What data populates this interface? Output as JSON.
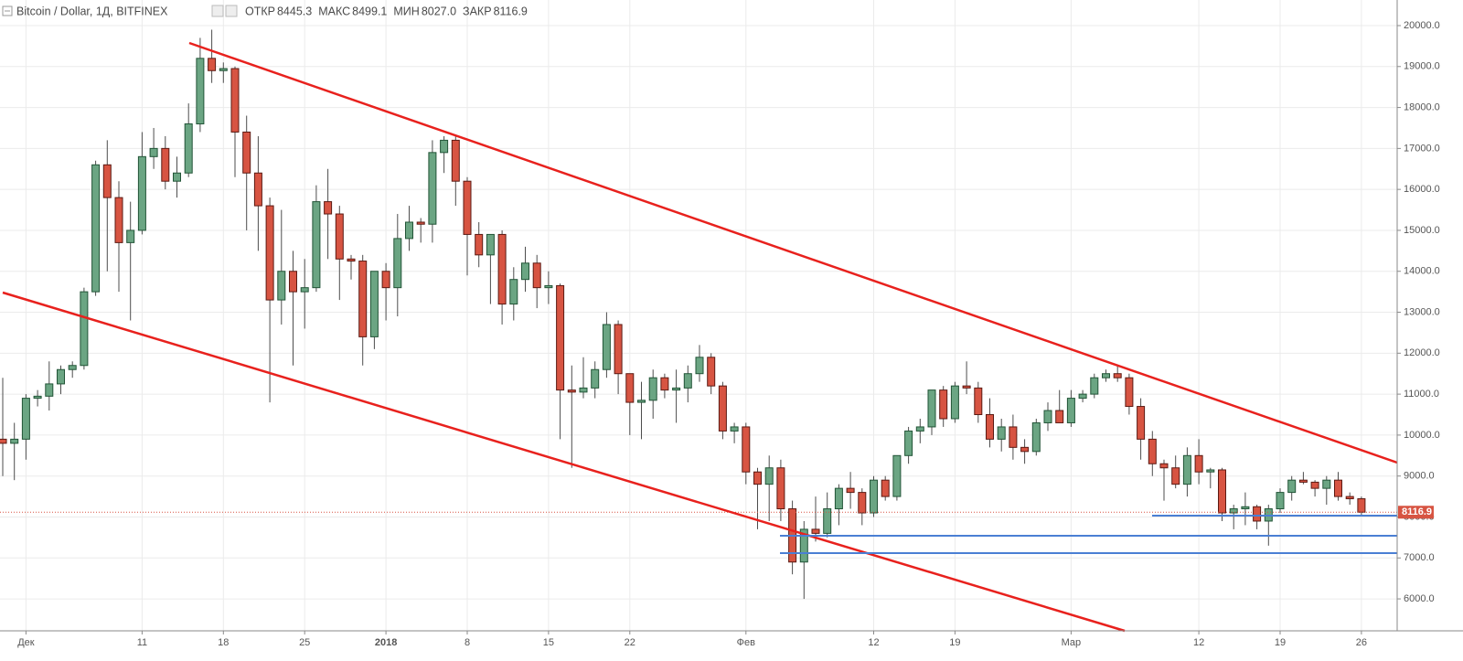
{
  "chart_data": {
    "type": "candlestick",
    "title": "Bitcoin / Dollar, 1Д, BITFINEX",
    "header": [
      {
        "name": "ОТКР",
        "value": 8445.3,
        "label": "8445.3"
      },
      {
        "name": "МАКС",
        "value": 8499.1,
        "label": "8499.1"
      },
      {
        "name": "МИН",
        "value": 8027,
        "label": "8027.0"
      },
      {
        "name": "ЗАКР",
        "value": 8116.9,
        "label": "8116.9"
      }
    ],
    "categories": [
      null,
      null,
      "Дек",
      null,
      null,
      null,
      null,
      null,
      null,
      null,
      null,
      null,
      "11",
      null,
      null,
      null,
      null,
      null,
      null,
      "18",
      null,
      null,
      null,
      null,
      null,
      null,
      "25",
      null,
      null,
      null,
      null,
      null,
      null,
      "2018",
      null,
      null,
      null,
      null,
      null,
      null,
      "8",
      null,
      null,
      null,
      null,
      null,
      null,
      "15",
      null,
      null,
      null,
      null,
      null,
      null,
      "22",
      null,
      null,
      null,
      null,
      null,
      null,
      null,
      null,
      null,
      "Фев",
      null,
      null,
      null,
      null,
      null,
      null,
      null,
      null,
      null,
      null,
      "12",
      null,
      null,
      null,
      null,
      null,
      null,
      "19",
      null,
      null,
      null,
      null,
      null,
      null,
      null,
      null,
      null,
      "Мар",
      null,
      null,
      null,
      null,
      null,
      null,
      null,
      null,
      null,
      null,
      "12",
      null,
      null,
      null,
      null,
      null,
      null,
      "19",
      null,
      null,
      null,
      null,
      null,
      null,
      "26"
    ],
    "open": [
      9900,
      9800,
      9900,
      10900,
      10950,
      11250,
      11600,
      11700,
      13500,
      16600,
      15800,
      14700,
      15000,
      16800,
      17000,
      16200,
      16400,
      17600,
      19200,
      18900,
      18950,
      17400,
      16400,
      15600,
      13300,
      14000,
      13500,
      13600,
      15700,
      15400,
      14300,
      14250,
      12400,
      14000,
      13600,
      14800,
      15200,
      15150,
      16900,
      17200,
      16200,
      14900,
      14400,
      14900,
      13200,
      13800,
      14200,
      13600,
      13650,
      11100,
      11050,
      11150,
      11600,
      12700,
      11500,
      10800,
      10850,
      11400,
      11100,
      11150,
      11500,
      11900,
      11200,
      10100,
      10200,
      9100,
      8800,
      9200,
      8200,
      6900,
      7700,
      7600,
      8200,
      8700,
      8600,
      8100,
      8900,
      8500,
      9500,
      10100,
      10200,
      11100,
      10400,
      11200,
      11150,
      10500,
      9900,
      10200,
      9700,
      9600,
      10300,
      10600,
      10300,
      10900,
      11000,
      11400,
      11500,
      11400,
      10700,
      9900,
      9300,
      9200,
      8800,
      9500,
      9100,
      9150,
      8100,
      8200,
      8250,
      7900,
      8200,
      8600,
      8900,
      8850,
      8700,
      8900,
      8500,
      8445.3
    ],
    "high": [
      11400,
      10300,
      11000,
      11100,
      11800,
      11700,
      11800,
      13600,
      16700,
      17200,
      16200,
      15700,
      17400,
      17500,
      17300,
      16800,
      18100,
      19700,
      19900,
      19100,
      19000,
      17800,
      17300,
      15800,
      15500,
      14500,
      14300,
      16100,
      16500,
      15600,
      14400,
      14400,
      14000,
      14200,
      15400,
      15600,
      15300,
      17200,
      17300,
      17300,
      16300,
      15200,
      14900,
      15000,
      14100,
      14600,
      14400,
      14000,
      13700,
      11700,
      11900,
      11800,
      13000,
      12800,
      11500,
      11300,
      11600,
      11500,
      11600,
      11700,
      12200,
      12000,
      11300,
      10300,
      10300,
      9200,
      9500,
      9400,
      8400,
      7900,
      8500,
      8600,
      8800,
      9100,
      8700,
      9000,
      9000,
      9500,
      10200,
      10400,
      11100,
      11200,
      11300,
      11800,
      11300,
      10900,
      10400,
      10500,
      9900,
      10400,
      10800,
      11100,
      11100,
      11100,
      11500,
      11600,
      11700,
      11500,
      10900,
      10100,
      9400,
      9500,
      9700,
      9900,
      9200,
      9200,
      8300,
      8600,
      8300,
      8300,
      8700,
      9000,
      9100,
      8900,
      9000,
      9100,
      8600,
      8499.1
    ],
    "low": [
      9000,
      8900,
      9400,
      10700,
      10600,
      11000,
      11400,
      11600,
      13400,
      14000,
      13500,
      12800,
      14900,
      16500,
      16000,
      15800,
      16300,
      17400,
      18600,
      18600,
      16300,
      15000,
      14500,
      10800,
      12700,
      11700,
      12600,
      13500,
      14300,
      13300,
      13800,
      11700,
      12100,
      12800,
      12900,
      14500,
      14700,
      14700,
      16400,
      15600,
      13900,
      14100,
      13200,
      12700,
      12800,
      13500,
      13100,
      13200,
      9900,
      9200,
      10900,
      10900,
      11400,
      11000,
      10000,
      9900,
      10400,
      10900,
      10300,
      10800,
      11300,
      11000,
      9900,
      9800,
      8800,
      7700,
      7900,
      7900,
      6600,
      6000,
      7400,
      7500,
      7800,
      8200,
      7800,
      8000,
      8400,
      8400,
      9300,
      9800,
      10000,
      10200,
      10300,
      11000,
      10300,
      9700,
      9600,
      9400,
      9300,
      9500,
      10100,
      10300,
      10200,
      10800,
      10900,
      11300,
      11300,
      10500,
      9400,
      9000,
      8400,
      8700,
      8500,
      8800,
      8700,
      7900,
      7700,
      7800,
      7700,
      7300,
      8100,
      8400,
      8800,
      8500,
      8300,
      8400,
      8300,
      8027
    ],
    "close": [
      9800,
      9900,
      10900,
      10950,
      11250,
      11600,
      11700,
      13500,
      16600,
      15800,
      14700,
      15000,
      16800,
      17000,
      16200,
      16400,
      17600,
      19200,
      18900,
      18950,
      17400,
      16400,
      15600,
      13300,
      14000,
      13500,
      13600,
      15700,
      15400,
      14300,
      14250,
      12400,
      14000,
      13600,
      14800,
      15200,
      15150,
      16900,
      17200,
      16200,
      14900,
      14400,
      14900,
      13200,
      13800,
      14200,
      13600,
      13650,
      11100,
      11050,
      11150,
      11600,
      12700,
      11500,
      10800,
      10850,
      11400,
      11100,
      11150,
      11500,
      11900,
      11200,
      10100,
      10200,
      9100,
      8800,
      9200,
      8200,
      6900,
      7700,
      7600,
      8200,
      8700,
      8600,
      8100,
      8900,
      8500,
      9500,
      10100,
      10200,
      11100,
      10400,
      11200,
      11150,
      10500,
      9900,
      10200,
      9700,
      9600,
      10300,
      10600,
      10300,
      10900,
      11000,
      11400,
      11500,
      11400,
      10700,
      9900,
      9300,
      9200,
      8800,
      9500,
      9100,
      9150,
      8100,
      8200,
      8250,
      7900,
      8200,
      8600,
      8900,
      8850,
      8700,
      8900,
      8500,
      8445.3,
      8116.9
    ],
    "up_color": "#6ba583",
    "down_color": "#d75442",
    "up_border": "#225437",
    "down_border": "#5b1a13",
    "ylim": [
      5220,
      20625
    ],
    "yticks": [
      {
        "value": 6000,
        "label": "6000.0"
      },
      {
        "value": 7000,
        "label": "7000.0"
      },
      {
        "value": 8000,
        "label": "8000.0"
      },
      {
        "value": 9000,
        "label": "9000.0"
      },
      {
        "value": 10000,
        "label": "10000.0"
      },
      {
        "value": 11000,
        "label": "11000.0"
      },
      {
        "value": 12000,
        "label": "12000.0"
      },
      {
        "value": 13000,
        "label": "13000.0"
      },
      {
        "value": 14000,
        "label": "14000.0"
      },
      {
        "value": 15000,
        "label": "15000.0"
      },
      {
        "value": 16000,
        "label": "16000.0"
      },
      {
        "value": 17000,
        "label": "17000.0"
      },
      {
        "value": 18000,
        "label": "18000.0"
      },
      {
        "value": 19000,
        "label": "19000.0"
      },
      {
        "value": 20000,
        "label": "20000.0"
      }
    ],
    "grid": true
  }
}
